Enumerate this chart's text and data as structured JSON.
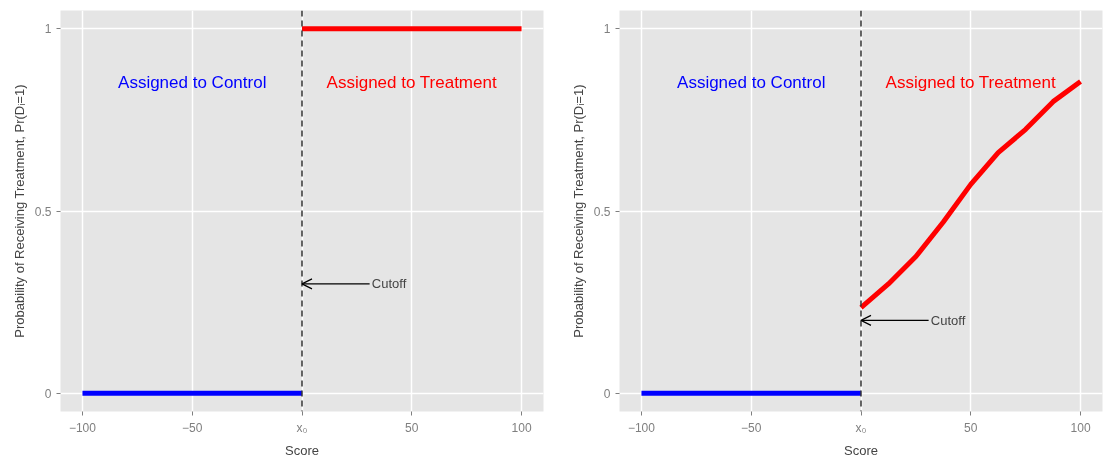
{
  "chart_data": [
    {
      "type": "line",
      "xlabel": "Score",
      "ylabel": "Probability of Receiving Treatment, Pr(Dᵢ=1)",
      "series": [
        {
          "name": "Assigned to Control",
          "color": "#0000ff",
          "x": [
            -100,
            0
          ],
          "values": [
            0,
            0
          ]
        },
        {
          "name": "Assigned to Treatment",
          "color": "#ff0000",
          "x": [
            0,
            100
          ],
          "values": [
            1,
            1
          ]
        }
      ],
      "xlim": [
        -110,
        110
      ],
      "ylim": [
        -0.05,
        1.05
      ],
      "xticks": [
        -100,
        -50,
        {
          "value": 0,
          "label": "x₀"
        },
        50,
        100
      ],
      "yticks": [
        0,
        0.5,
        1
      ],
      "ref_lines": [
        {
          "axis": "x",
          "value": 0,
          "color": "#333333",
          "line_style": "dashed"
        }
      ],
      "annotations": [
        {
          "text": "Cutoff",
          "x": 0,
          "y": 0.3
        }
      ],
      "grid": true,
      "marker": "none",
      "line_style": "solid"
    },
    {
      "type": "line",
      "xlabel": "Score",
      "ylabel": "Probability of Receiving Treatment, Pr(Dᵢ=1)",
      "series": [
        {
          "name": "Assigned to Control",
          "color": "#0000ff",
          "x": [
            -100,
            0
          ],
          "values": [
            0,
            0
          ]
        },
        {
          "name": "Assigned to Treatment",
          "color": "#ff0000",
          "x": [
            0,
            12.5,
            25,
            37.5,
            50,
            62.5,
            75,
            87.5,
            100
          ],
          "values": [
            0.235,
            0.3,
            0.375,
            0.47,
            0.573,
            0.66,
            0.724,
            0.8,
            0.855
          ]
        }
      ],
      "xlim": [
        -110,
        110
      ],
      "ylim": [
        -0.05,
        1.05
      ],
      "xticks": [
        -100,
        -50,
        {
          "value": 0,
          "label": "x₀"
        },
        50,
        100
      ],
      "yticks": [
        0,
        0.5,
        1
      ],
      "ref_lines": [
        {
          "axis": "x",
          "value": 0,
          "color": "#333333",
          "line_style": "dashed"
        }
      ],
      "annotations": [
        {
          "text": "Cutoff",
          "x": 0,
          "y": 0.2
        }
      ],
      "grid": true,
      "marker": "none",
      "line_style": "solid"
    }
  ]
}
